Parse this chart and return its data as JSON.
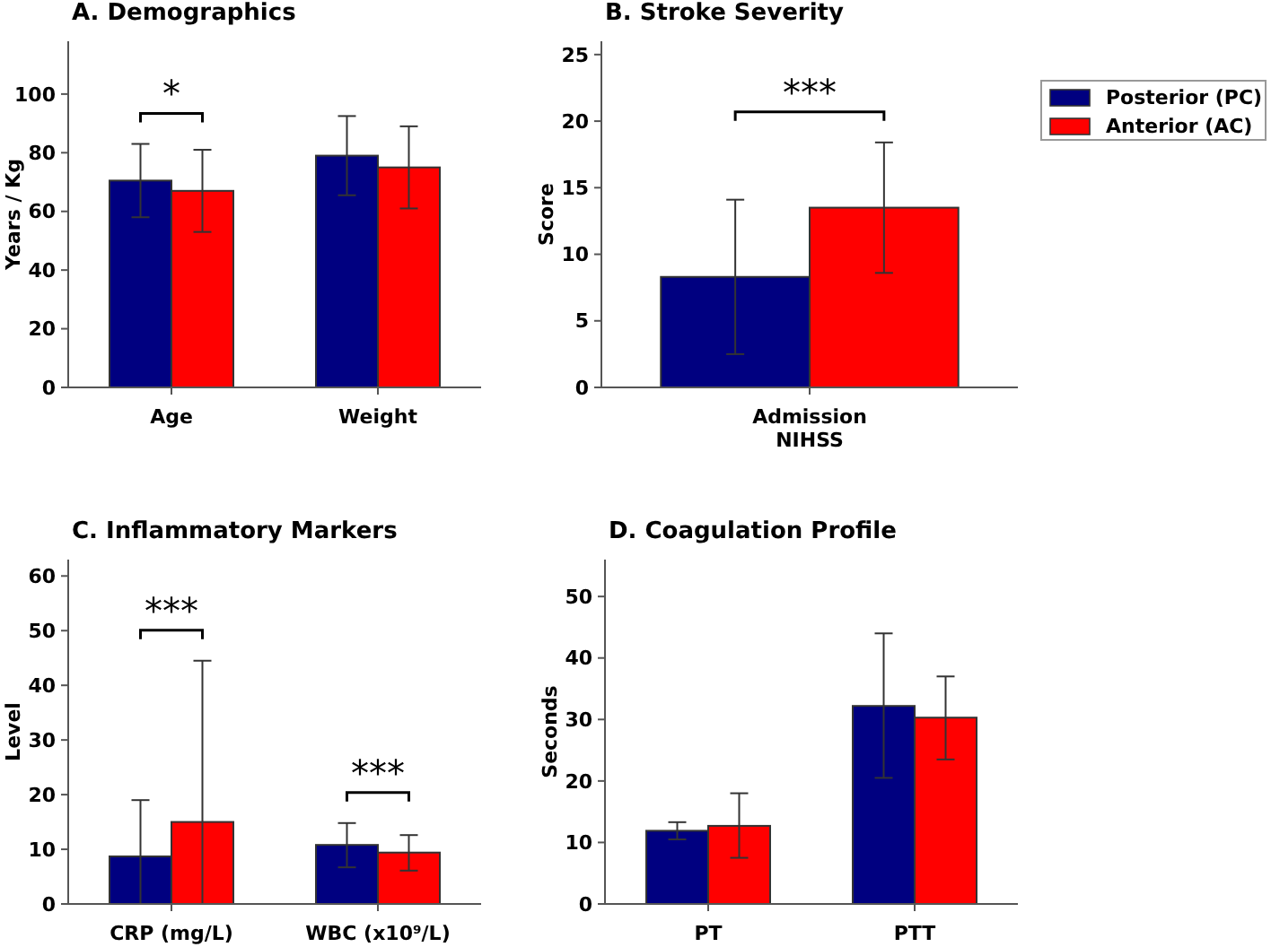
{
  "chart_data": [
    {
      "type": "bar",
      "title": "A. Demographics",
      "ylabel": "Years / Kg",
      "categories": [
        "Age",
        "Weight"
      ],
      "ylim": [
        0,
        118
      ],
      "yticks": [
        0,
        20,
        40,
        60,
        80,
        100
      ],
      "series": [
        {
          "color": "#000080",
          "values": [
            70.5,
            79
          ],
          "errors": [
            [
              58,
              83
            ],
            [
              65.5,
              92.5
            ]
          ]
        },
        {
          "color": "#ff0000",
          "values": [
            67,
            75
          ],
          "errors": [
            [
              53,
              81
            ],
            [
              61,
              89
            ]
          ]
        }
      ],
      "annotations": [
        "*"
      ]
    },
    {
      "type": "bar",
      "title": "B. Stroke Severity",
      "ylabel": "Score",
      "categories": [
        "Admission\nNIHSS"
      ],
      "ylim": [
        0,
        26
      ],
      "yticks": [
        0,
        5,
        10,
        15,
        20,
        25
      ],
      "legend": "right",
      "series": [
        {
          "name": "Posterior (PC)",
          "color": "#000080",
          "values": [
            8.3
          ],
          "errors": [
            [
              2.5,
              14.1
            ]
          ]
        },
        {
          "name": "Anterior (AC)",
          "color": "#ff0000",
          "values": [
            13.5
          ],
          "errors": [
            [
              8.6,
              18.4
            ]
          ]
        }
      ],
      "annotations": [
        "***"
      ]
    },
    {
      "type": "bar",
      "title": "C. Inflammatory Markers",
      "ylabel": "Level",
      "categories": [
        "CRP (mg/L)",
        "WBC (x10⁹/L)"
      ],
      "ylim": [
        0,
        63
      ],
      "yticks": [
        0,
        10,
        20,
        30,
        40,
        50,
        60
      ],
      "series": [
        {
          "color": "#000080",
          "values": [
            8.7,
            10.8
          ],
          "errors": [
            [
              0,
              19
            ],
            [
              6.7,
              14.8
            ]
          ]
        },
        {
          "color": "#ff0000",
          "values": [
            15,
            9.4
          ],
          "errors": [
            [
              0,
              44.5
            ],
            [
              6.1,
              12.6
            ]
          ]
        }
      ],
      "annotations": [
        "***",
        "***"
      ]
    },
    {
      "type": "bar",
      "title": "D. Coagulation Profile",
      "ylabel": "Seconds",
      "categories": [
        "PT",
        "PTT"
      ],
      "ylim": [
        0,
        56
      ],
      "yticks": [
        0,
        10,
        20,
        30,
        40,
        50
      ],
      "series": [
        {
          "color": "#000080",
          "values": [
            11.9,
            32.2
          ],
          "errors": [
            [
              10.5,
              13.3
            ],
            [
              20.5,
              44
            ]
          ]
        },
        {
          "color": "#ff0000",
          "values": [
            12.7,
            30.3
          ],
          "errors": [
            [
              7.5,
              18
            ],
            [
              23.5,
              37
            ]
          ]
        }
      ]
    }
  ]
}
